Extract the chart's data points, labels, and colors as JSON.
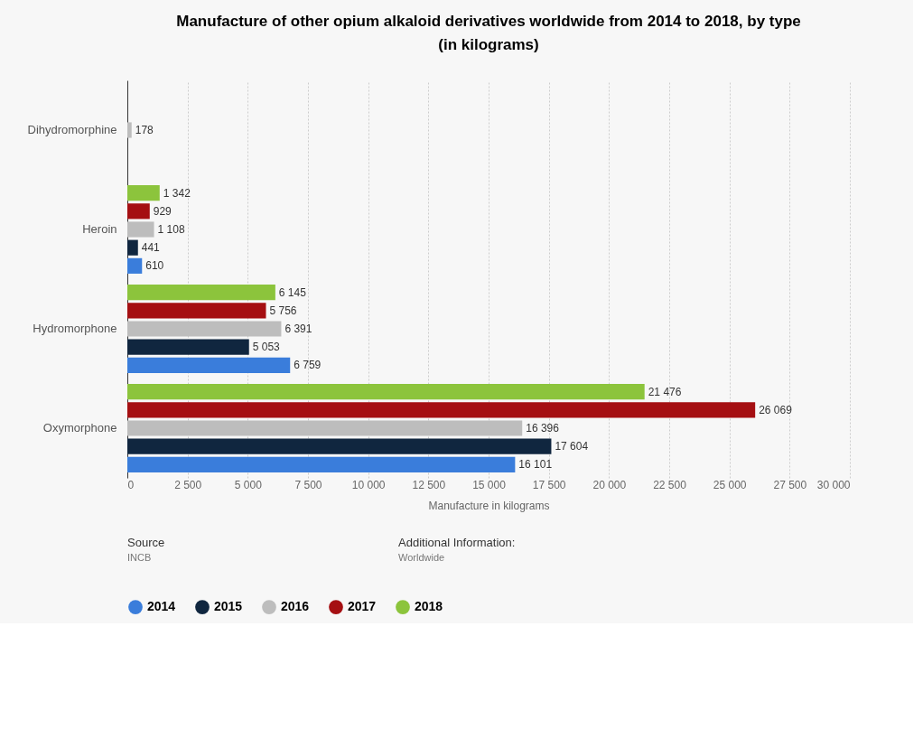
{
  "chart_data": {
    "type": "bar",
    "orientation": "horizontal",
    "title": "Manufacture of other opium alkaloid derivatives worldwide from 2014 to 2018, by type (in kilograms)",
    "xlabel": "Manufacture in kilograms",
    "categories": [
      "Dihydromorphine",
      "Heroin",
      "Hydromorphone",
      "Oxymorphone"
    ],
    "series": [
      {
        "name": "2014",
        "color": "#3a7ddb",
        "values": [
          null,
          610,
          6759,
          16101
        ],
        "value_labels": [
          null,
          "610",
          "6 759",
          "16 101"
        ]
      },
      {
        "name": "2015",
        "color": "#10263f",
        "values": [
          null,
          441,
          5053,
          17604
        ],
        "value_labels": [
          null,
          "441",
          "5 053",
          "17 604"
        ]
      },
      {
        "name": "2016",
        "color": "#bdbdbd",
        "values": [
          178,
          1108,
          6391,
          16396
        ],
        "value_labels": [
          "178",
          "1 108",
          "6 391",
          "16 396"
        ]
      },
      {
        "name": "2017",
        "color": "#a50f12",
        "values": [
          null,
          929,
          5756,
          26069
        ],
        "value_labels": [
          null,
          "929",
          "5 756",
          "26 069"
        ]
      },
      {
        "name": "2018",
        "color": "#8cc43c",
        "values": [
          null,
          1342,
          6145,
          21476
        ],
        "value_labels": [
          null,
          "1 342",
          "6 145",
          "21 476"
        ]
      }
    ],
    "xlim": [
      0,
      30000
    ],
    "xticks": [
      0,
      {
        "value": 2500,
        "label": "2 500"
      },
      {
        "value": 5000,
        "label": "5 000"
      },
      {
        "value": 7500,
        "label": "7 500"
      },
      {
        "value": 10000,
        "label": "10 000"
      },
      {
        "value": 12500,
        "label": "12 500"
      },
      {
        "value": 15000,
        "label": "15 000"
      },
      {
        "value": 17500,
        "label": "17 500"
      },
      {
        "value": 20000,
        "label": "20 000"
      },
      {
        "value": 22500,
        "label": "22 500"
      },
      {
        "value": 25000,
        "label": "25 000"
      },
      {
        "value": 27500,
        "label": "27 500"
      },
      {
        "value": 30000,
        "label": "30 000"
      }
    ],
    "grid": "x",
    "legend": "bottom",
    "annotations": [
      "Source",
      "INCB",
      "Additional Information:",
      "Worldwide"
    ]
  }
}
